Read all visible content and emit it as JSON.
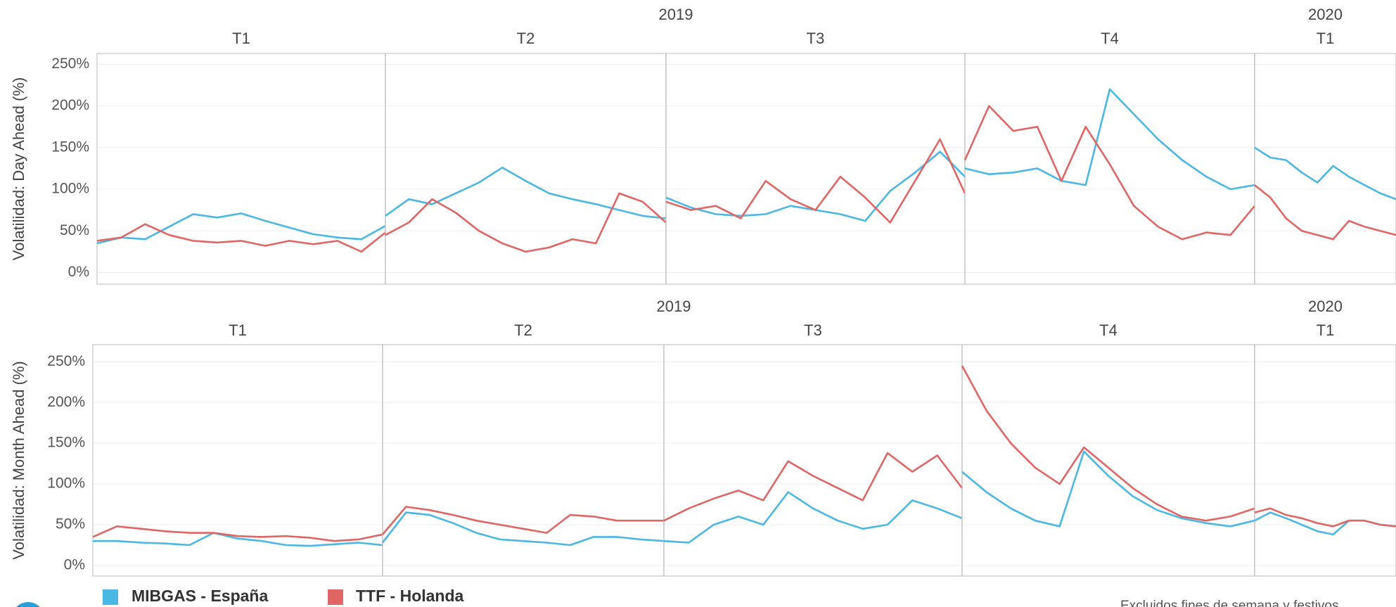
{
  "legend": [
    {
      "name": "MIBGAS - España",
      "color": "#4bb7e3"
    },
    {
      "name": "TTF - Holanda",
      "color": "#e06666"
    }
  ],
  "note": "Excluidos fines de semana y festivos",
  "chart_data": [
    {
      "type": "line",
      "y_label": "Volatilidad: Day Ahead (%)",
      "ylim": [
        -14,
        263
      ],
      "yticks": [
        {
          "value": 0,
          "label": "0%"
        },
        {
          "value": 50,
          "label": "50%"
        },
        {
          "value": 100,
          "label": "100%"
        },
        {
          "value": 150,
          "label": "150%"
        },
        {
          "value": 200,
          "label": "200%"
        },
        {
          "value": 250,
          "label": "250%"
        }
      ],
      "years": [
        {
          "label": "2019",
          "panels": [
            {
              "quarter": "T1",
              "series": [
                {
                  "values": [
                    35,
                    42,
                    40,
                    55,
                    70,
                    66,
                    71,
                    62,
                    54,
                    46,
                    42,
                    40,
                    56
                  ]
                },
                {
                  "values": [
                    38,
                    42,
                    58,
                    45,
                    38,
                    36,
                    38,
                    32,
                    38,
                    34,
                    38,
                    25,
                    48
                  ]
                }
              ]
            },
            {
              "quarter": "T2",
              "series": [
                {
                  "values": [
                    68,
                    88,
                    82,
                    95,
                    108,
                    126,
                    110,
                    95,
                    88,
                    82,
                    75,
                    68,
                    65
                  ]
                },
                {
                  "values": [
                    45,
                    60,
                    88,
                    72,
                    50,
                    35,
                    25,
                    30,
                    40,
                    35,
                    95,
                    85,
                    60
                  ]
                }
              ]
            },
            {
              "quarter": "T3",
              "series": [
                {
                  "values": [
                    90,
                    78,
                    70,
                    68,
                    70,
                    80,
                    75,
                    70,
                    62,
                    98,
                    120,
                    145,
                    115
                  ]
                },
                {
                  "values": [
                    85,
                    75,
                    80,
                    65,
                    110,
                    88,
                    75,
                    115,
                    90,
                    60,
                    110,
                    160,
                    95
                  ]
                }
              ]
            },
            {
              "quarter": "T4",
              "series": [
                {
                  "values": [
                    125,
                    118,
                    120,
                    125,
                    110,
                    105,
                    220,
                    190,
                    160,
                    135,
                    115,
                    100,
                    105
                  ]
                },
                {
                  "values": [
                    135,
                    200,
                    170,
                    175,
                    110,
                    175,
                    130,
                    80,
                    55,
                    40,
                    48,
                    45,
                    80
                  ]
                }
              ]
            }
          ]
        },
        {
          "label": "2020",
          "panels": [
            {
              "quarter": "T1",
              "series": [
                {
                  "values": [
                    150,
                    138,
                    135,
                    120,
                    108,
                    128,
                    115,
                    105,
                    95,
                    88
                  ]
                },
                {
                  "values": [
                    105,
                    90,
                    65,
                    50,
                    45,
                    40,
                    62,
                    55,
                    50,
                    45
                  ]
                }
              ]
            }
          ]
        }
      ]
    },
    {
      "type": "line",
      "y_label": "Volatilidad: Month Ahead (%)",
      "ylim": [
        -13,
        271
      ],
      "yticks": [
        {
          "value": 0,
          "label": "0%"
        },
        {
          "value": 50,
          "label": "50%"
        },
        {
          "value": 100,
          "label": "100%"
        },
        {
          "value": 150,
          "label": "150%"
        },
        {
          "value": 200,
          "label": "200%"
        },
        {
          "value": 250,
          "label": "250%"
        }
      ],
      "years": [
        {
          "label": "2019",
          "panels": [
            {
              "quarter": "T1",
              "series": [
                {
                  "values": [
                    30,
                    30,
                    28,
                    27,
                    25,
                    40,
                    33,
                    30,
                    25,
                    24,
                    26,
                    28,
                    25
                  ]
                },
                {
                  "values": [
                    35,
                    48,
                    45,
                    42,
                    40,
                    40,
                    36,
                    35,
                    36,
                    34,
                    30,
                    32,
                    38
                  ]
                }
              ]
            },
            {
              "quarter": "T2",
              "series": [
                {
                  "values": [
                    28,
                    65,
                    62,
                    52,
                    40,
                    32,
                    30,
                    28,
                    25,
                    35,
                    35,
                    32,
                    30
                  ]
                },
                {
                  "values": [
                    38,
                    72,
                    68,
                    62,
                    55,
                    50,
                    45,
                    40,
                    62,
                    60,
                    55,
                    55,
                    55
                  ]
                }
              ]
            },
            {
              "quarter": "T3",
              "series": [
                {
                  "values": [
                    30,
                    28,
                    50,
                    60,
                    50,
                    90,
                    70,
                    55,
                    45,
                    50,
                    80,
                    70,
                    58
                  ]
                },
                {
                  "values": [
                    55,
                    70,
                    82,
                    92,
                    80,
                    128,
                    110,
                    95,
                    80,
                    138,
                    115,
                    135,
                    95
                  ]
                }
              ]
            },
            {
              "quarter": "T4",
              "series": [
                {
                  "values": [
                    115,
                    90,
                    70,
                    55,
                    48,
                    140,
                    110,
                    85,
                    68,
                    58,
                    52,
                    48,
                    55
                  ]
                },
                {
                  "values": [
                    245,
                    190,
                    150,
                    120,
                    100,
                    145,
                    120,
                    95,
                    75,
                    60,
                    55,
                    60,
                    70
                  ]
                }
              ]
            }
          ]
        },
        {
          "label": "2020",
          "panels": [
            {
              "quarter": "T1",
              "series": [
                {
                  "values": [
                    55,
                    65,
                    58,
                    50,
                    42,
                    38,
                    55,
                    55,
                    50,
                    48
                  ]
                },
                {
                  "values": [
                    65,
                    70,
                    62,
                    58,
                    52,
                    48,
                    55,
                    55,
                    50,
                    48
                  ]
                }
              ]
            }
          ]
        }
      ]
    }
  ]
}
